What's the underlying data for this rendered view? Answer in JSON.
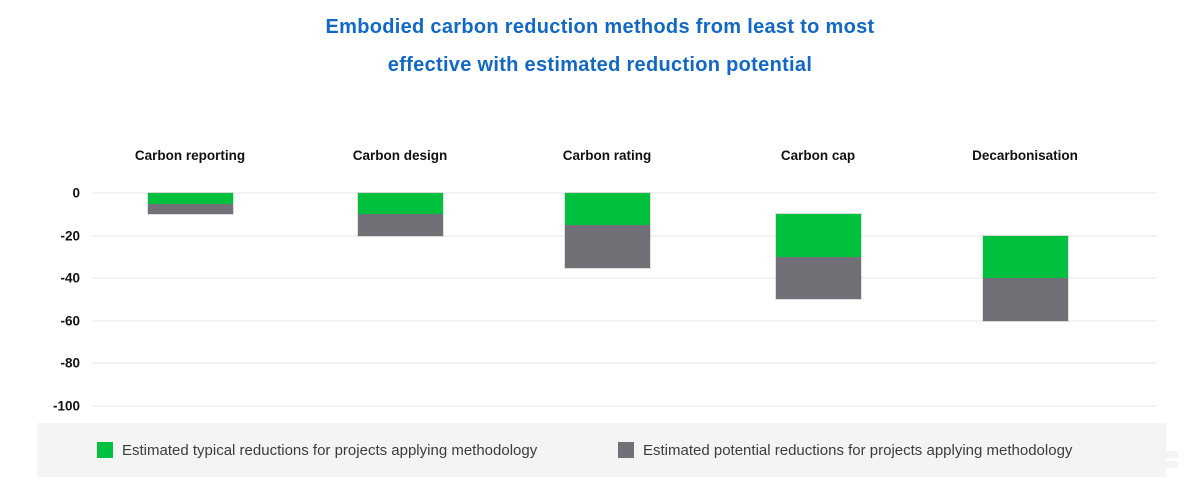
{
  "title": {
    "line1": "Embodied carbon reduction methods from least to most",
    "line2": "effective with estimated reduction potential"
  },
  "colors": {
    "title_blue": "#1268c4",
    "typical_green": "#00c13e",
    "potential_gray": "#717076",
    "gridline": "#f2f2f2",
    "legend_background": "#f4f4f4",
    "label_black": "#111111"
  },
  "chart_data": {
    "type": "bar",
    "subtype": "vertical-range-stacked",
    "title": "Embodied carbon reduction methods from least to most effective with estimated reduction potential",
    "categories": [
      "Carbon reporting",
      "Carbon design",
      "Carbon rating",
      "Carbon cap",
      "Decarbonisation"
    ],
    "series": [
      {
        "name": "Estimated typical reductions for projects applying methodology",
        "color": "#00c13e",
        "ranges": [
          [
            0,
            -5
          ],
          [
            0,
            -10
          ],
          [
            0,
            -15
          ],
          [
            -10,
            -30
          ],
          [
            -20,
            -40
          ]
        ]
      },
      {
        "name": "Estimated potential reductions for projects applying methodology",
        "color": "#717076",
        "ranges": [
          [
            -5,
            -10
          ],
          [
            -10,
            -20
          ],
          [
            -15,
            -35
          ],
          [
            -30,
            -50
          ],
          [
            -40,
            -60
          ]
        ]
      }
    ],
    "ylim": [
      -100,
      0
    ],
    "yticks": [
      0,
      -20,
      -40,
      -60,
      -80,
      -100
    ],
    "ytick_labels": [
      "0",
      "-20",
      "-40",
      "-60",
      "-80",
      "-100"
    ],
    "grid": true,
    "legend_position": "bottom"
  }
}
